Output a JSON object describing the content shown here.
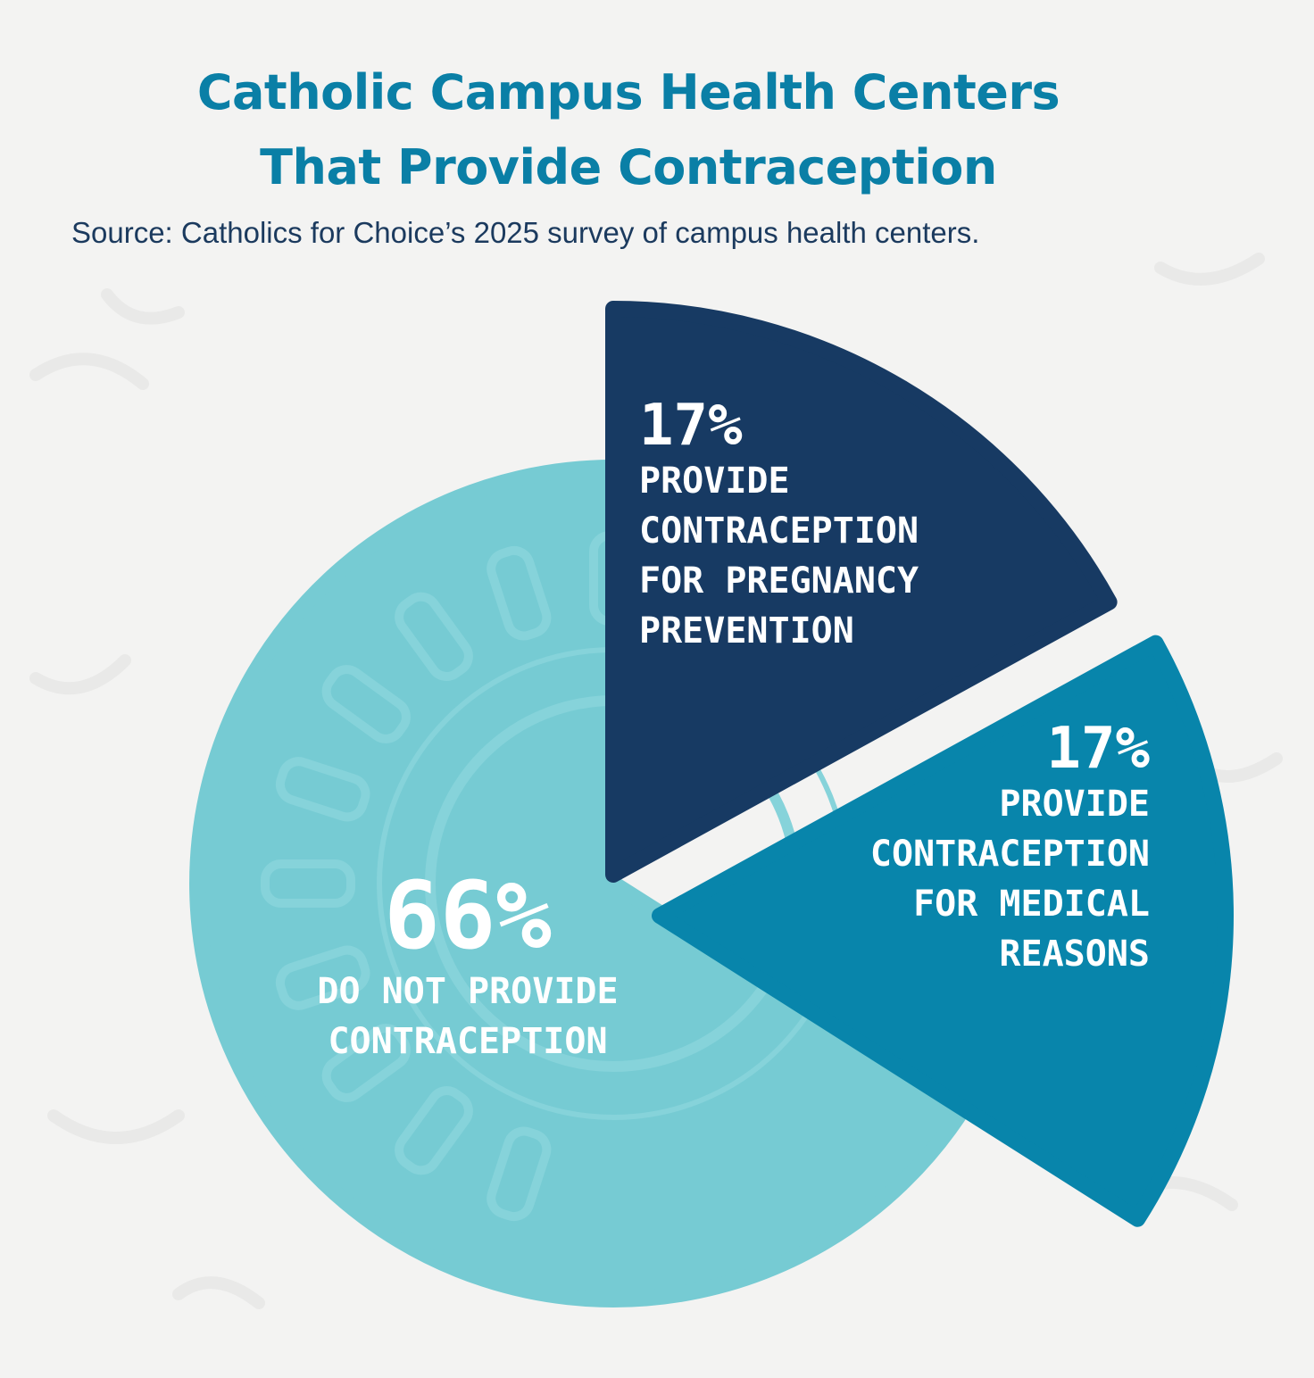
{
  "chart_data": {
    "type": "pie",
    "title": "Catholic Campus Health Centers That Provide Contraception",
    "title_lines": [
      "Catholic Campus Health Centers",
      "That Provide Contraception"
    ],
    "source": "Source: Catholics for Choice’s 2025 survey of campus health centers.",
    "slices": [
      {
        "id": "pregnancy",
        "value": 17,
        "percent_label": "17%",
        "label_lines": [
          "PROVIDE",
          "CONTRACEPTION",
          "FOR PREGNANCY",
          "PREVENTION"
        ],
        "color": "#173a63"
      },
      {
        "id": "medical",
        "value": 17,
        "percent_label": "17%",
        "label_lines": [
          "PROVIDE",
          "CONTRACEPTION",
          "FOR MEDICAL",
          "REASONS"
        ],
        "color": "#0885ab"
      },
      {
        "id": "none",
        "value": 66,
        "percent_label": "66%",
        "label_lines": [
          "DO NOT PROVIDE",
          "CONTRACEPTION"
        ],
        "color": "#76cbd3"
      }
    ]
  }
}
